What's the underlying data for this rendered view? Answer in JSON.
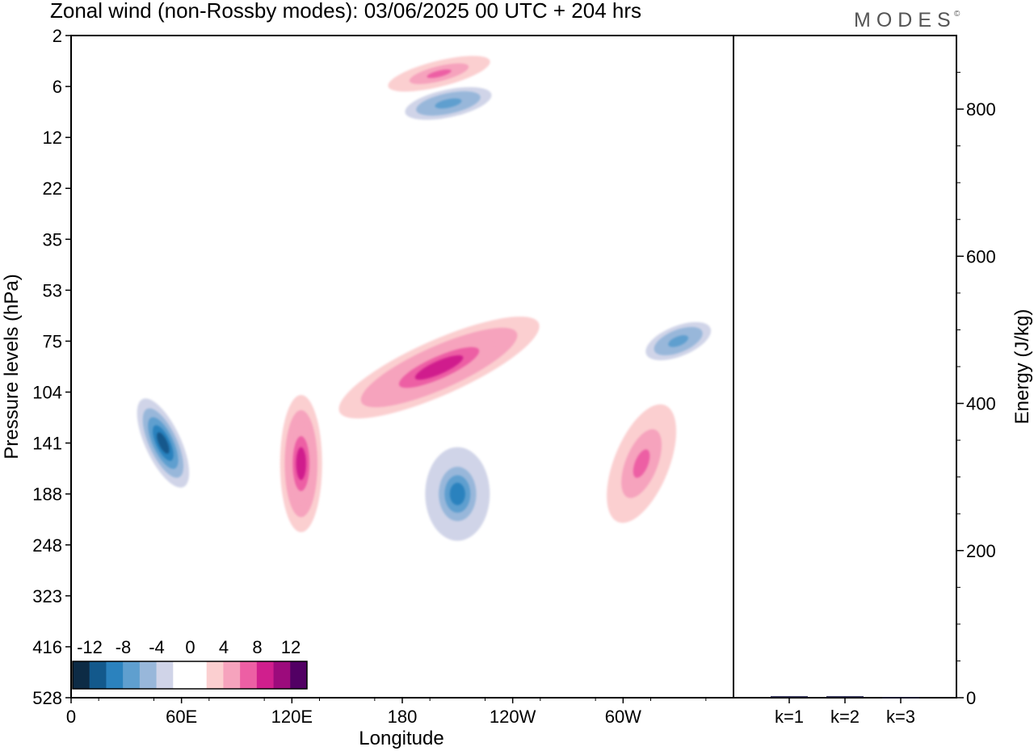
{
  "title": "Zonal wind (non-Rossby modes):  03/06/2025  00 UTC  + 204 hrs",
  "logo": "MODES",
  "logo_mark": "©",
  "chart_data": [
    {
      "type": "heatmap",
      "title": "Zonal wind (non-Rossby modes):  03/06/2025  00 UTC  + 204 hrs",
      "xlabel": "Longitude",
      "ylabel": "Pressure levels (hPa)",
      "x_ticks": [
        "0",
        "60E",
        "120E",
        "180",
        "120W",
        "60W"
      ],
      "y_ticks": [
        "2",
        "6",
        "12",
        "22",
        "35",
        "53",
        "75",
        "104",
        "141",
        "188",
        "248",
        "323",
        "416",
        "528"
      ],
      "colorbar": {
        "labels": [
          "-12",
          "-8",
          "-4",
          "0",
          "4",
          "8",
          "12"
        ],
        "colors": [
          "#0d2b45",
          "#13598c",
          "#2b82be",
          "#5f9fcf",
          "#98b7da",
          "#d0d4e8",
          "#ffffff",
          "#ffffff",
          "#fbcfd0",
          "#f6a3bd",
          "#ed5fa4",
          "#d01f8d",
          "#9c0b7c",
          "#520064"
        ]
      },
      "features": [
        {
          "name": "negative-jet",
          "x": 50,
          "y": 141,
          "value": -12
        },
        {
          "name": "negative-cell",
          "x": 210,
          "y": 188,
          "value": -10
        },
        {
          "name": "negative-upper",
          "x": 205,
          "y": 8,
          "value": -8
        },
        {
          "name": "negative-east",
          "x": 330,
          "y": 75,
          "value": -8
        },
        {
          "name": "positive-cell",
          "x": 125,
          "y": 160,
          "value": 10
        },
        {
          "name": "positive-band",
          "x": 200,
          "y": 90,
          "value": 10
        },
        {
          "name": "positive-east",
          "x": 310,
          "y": 160,
          "value": 8
        },
        {
          "name": "positive-upper",
          "x": 200,
          "y": 5,
          "value": 8
        }
      ]
    },
    {
      "type": "bar",
      "categories": [
        "k=1",
        "k=2",
        "k=3"
      ],
      "values": [
        2,
        2,
        1
      ],
      "ylabel": "Energy (J/kg)",
      "y_ticks": [
        "0",
        "200",
        "400",
        "600",
        "800"
      ],
      "ylim": [
        0,
        900
      ],
      "colors": [
        "#14143a"
      ]
    }
  ]
}
